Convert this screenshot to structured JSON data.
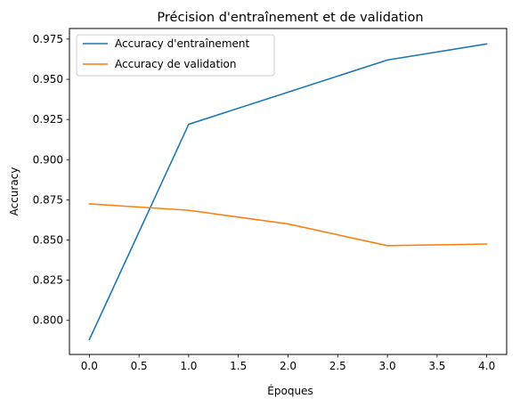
{
  "chart_data": {
    "type": "line",
    "title": "Précision d'entraînement et de validation",
    "xlabel": "Époques",
    "ylabel": "Accuracy",
    "x": [
      0,
      1,
      2,
      3,
      4
    ],
    "xlim": [
      -0.2,
      4.2
    ],
    "ylim": [
      0.7788,
      0.9816
    ],
    "xticks": [
      0.0,
      0.5,
      1.0,
      1.5,
      2.0,
      2.5,
      3.0,
      3.5,
      4.0
    ],
    "xtick_labels": [
      "0.0",
      "0.5",
      "1.0",
      "1.5",
      "2.0",
      "2.5",
      "3.0",
      "3.5",
      "4.0"
    ],
    "yticks": [
      0.8,
      0.825,
      0.85,
      0.875,
      0.9,
      0.925,
      0.95,
      0.975
    ],
    "ytick_labels": [
      "0.800",
      "0.825",
      "0.850",
      "0.875",
      "0.900",
      "0.925",
      "0.950",
      "0.975"
    ],
    "grid": false,
    "legend_position": "top-left",
    "series": [
      {
        "name": "Accuracy d'entraînement",
        "color": "#1f77b4",
        "values": [
          0.788,
          0.922,
          0.942,
          0.962,
          0.972
        ]
      },
      {
        "name": "Accuracy de validation",
        "color": "#ff7f0e",
        "values": [
          0.8725,
          0.8685,
          0.86,
          0.8465,
          0.8475
        ]
      }
    ]
  }
}
